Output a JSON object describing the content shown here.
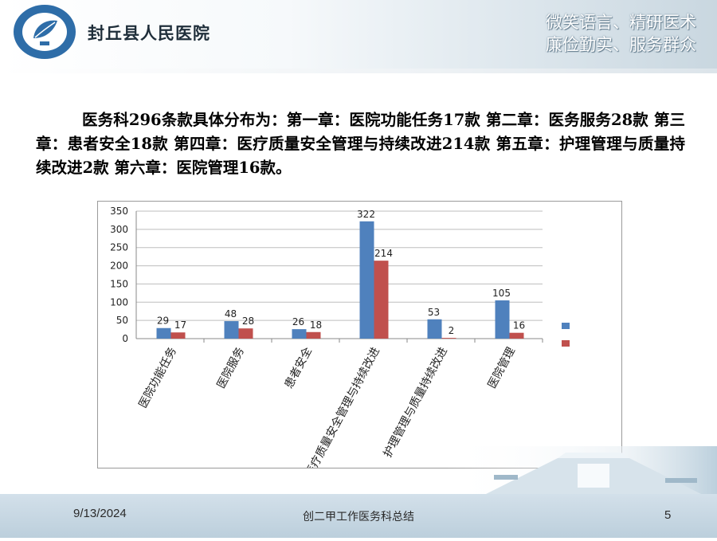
{
  "header": {
    "hospital_name": "封丘县人民医院",
    "motto_line1": "微笑语言、精研医术",
    "motto_line2": "廉俭勤实、服务群众"
  },
  "description": "医务科296条款具体分布为：第一章：医院功能任务17款 第二章：医务服务28款 第三章：患者安全18款  第四章：医疗质量安全管理与持续改进214款  第五章：护理管理与质量持续改进2款  第六章：医院管理16款。",
  "chart_data": {
    "type": "bar",
    "categories": [
      "医院功能任务",
      "医院服务",
      "患者安全",
      "医疗质量安全管理与持续改进",
      "护理管理与质量持续改进",
      "医院管理"
    ],
    "series": [
      {
        "values": [
          29,
          48,
          26,
          322,
          53,
          105
        ],
        "color": "#4f81bd"
      },
      {
        "values": [
          17,
          28,
          18,
          214,
          2,
          16
        ],
        "color": "#c0504d"
      }
    ],
    "yticks": [
      "0",
      "50",
      "100",
      "150",
      "200",
      "250",
      "300",
      "350"
    ],
    "ylim": [
      0,
      350
    ],
    "grid": true,
    "legend_position": "right",
    "legend_labels": [
      "",
      ""
    ]
  },
  "footer": {
    "date": "9/13/2024",
    "title": "创二甲工作医务科总结",
    "page": "5"
  },
  "colors": {
    "series_blue": "#4f81bd",
    "series_red": "#c0504d",
    "logo_blue": "#2e6da8",
    "footer_band": "#c4d5e1"
  }
}
